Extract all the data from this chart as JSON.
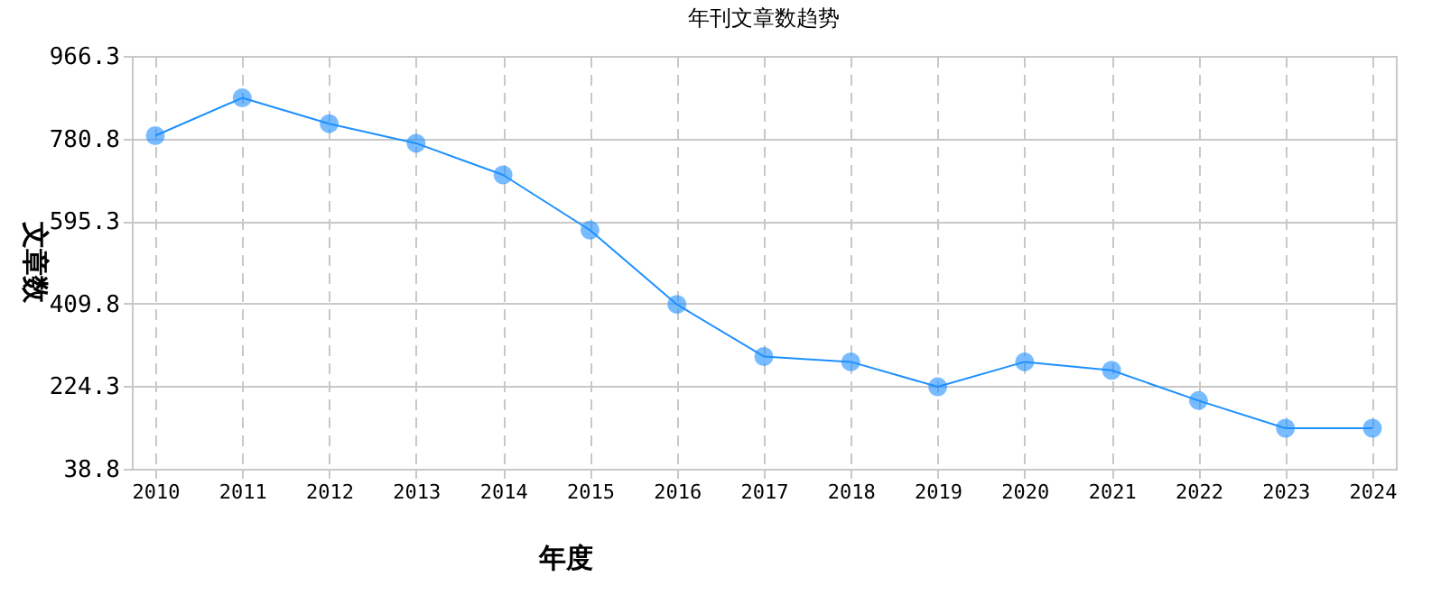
{
  "chart_data": {
    "type": "line",
    "title": "年刊文章数趋势",
    "xlabel": "年度",
    "ylabel": "文章数",
    "categories": [
      "2010",
      "2011",
      "2012",
      "2013",
      "2014",
      "2015",
      "2016",
      "2017",
      "2018",
      "2019",
      "2020",
      "2021",
      "2022",
      "2023",
      "2024"
    ],
    "series": [
      {
        "color": "#1e90ff",
        "values": [
          787,
          872,
          814,
          770,
          699,
          575,
          408,
          291,
          279,
          223,
          279,
          260,
          192,
          130,
          130
        ]
      }
    ],
    "ylim": [
      38.8,
      966.3
    ],
    "yticks": [
      38.8,
      224.3,
      409.8,
      595.3,
      780.8,
      966.3
    ],
    "grid": true,
    "marker": "circle",
    "line_style": "solid"
  }
}
